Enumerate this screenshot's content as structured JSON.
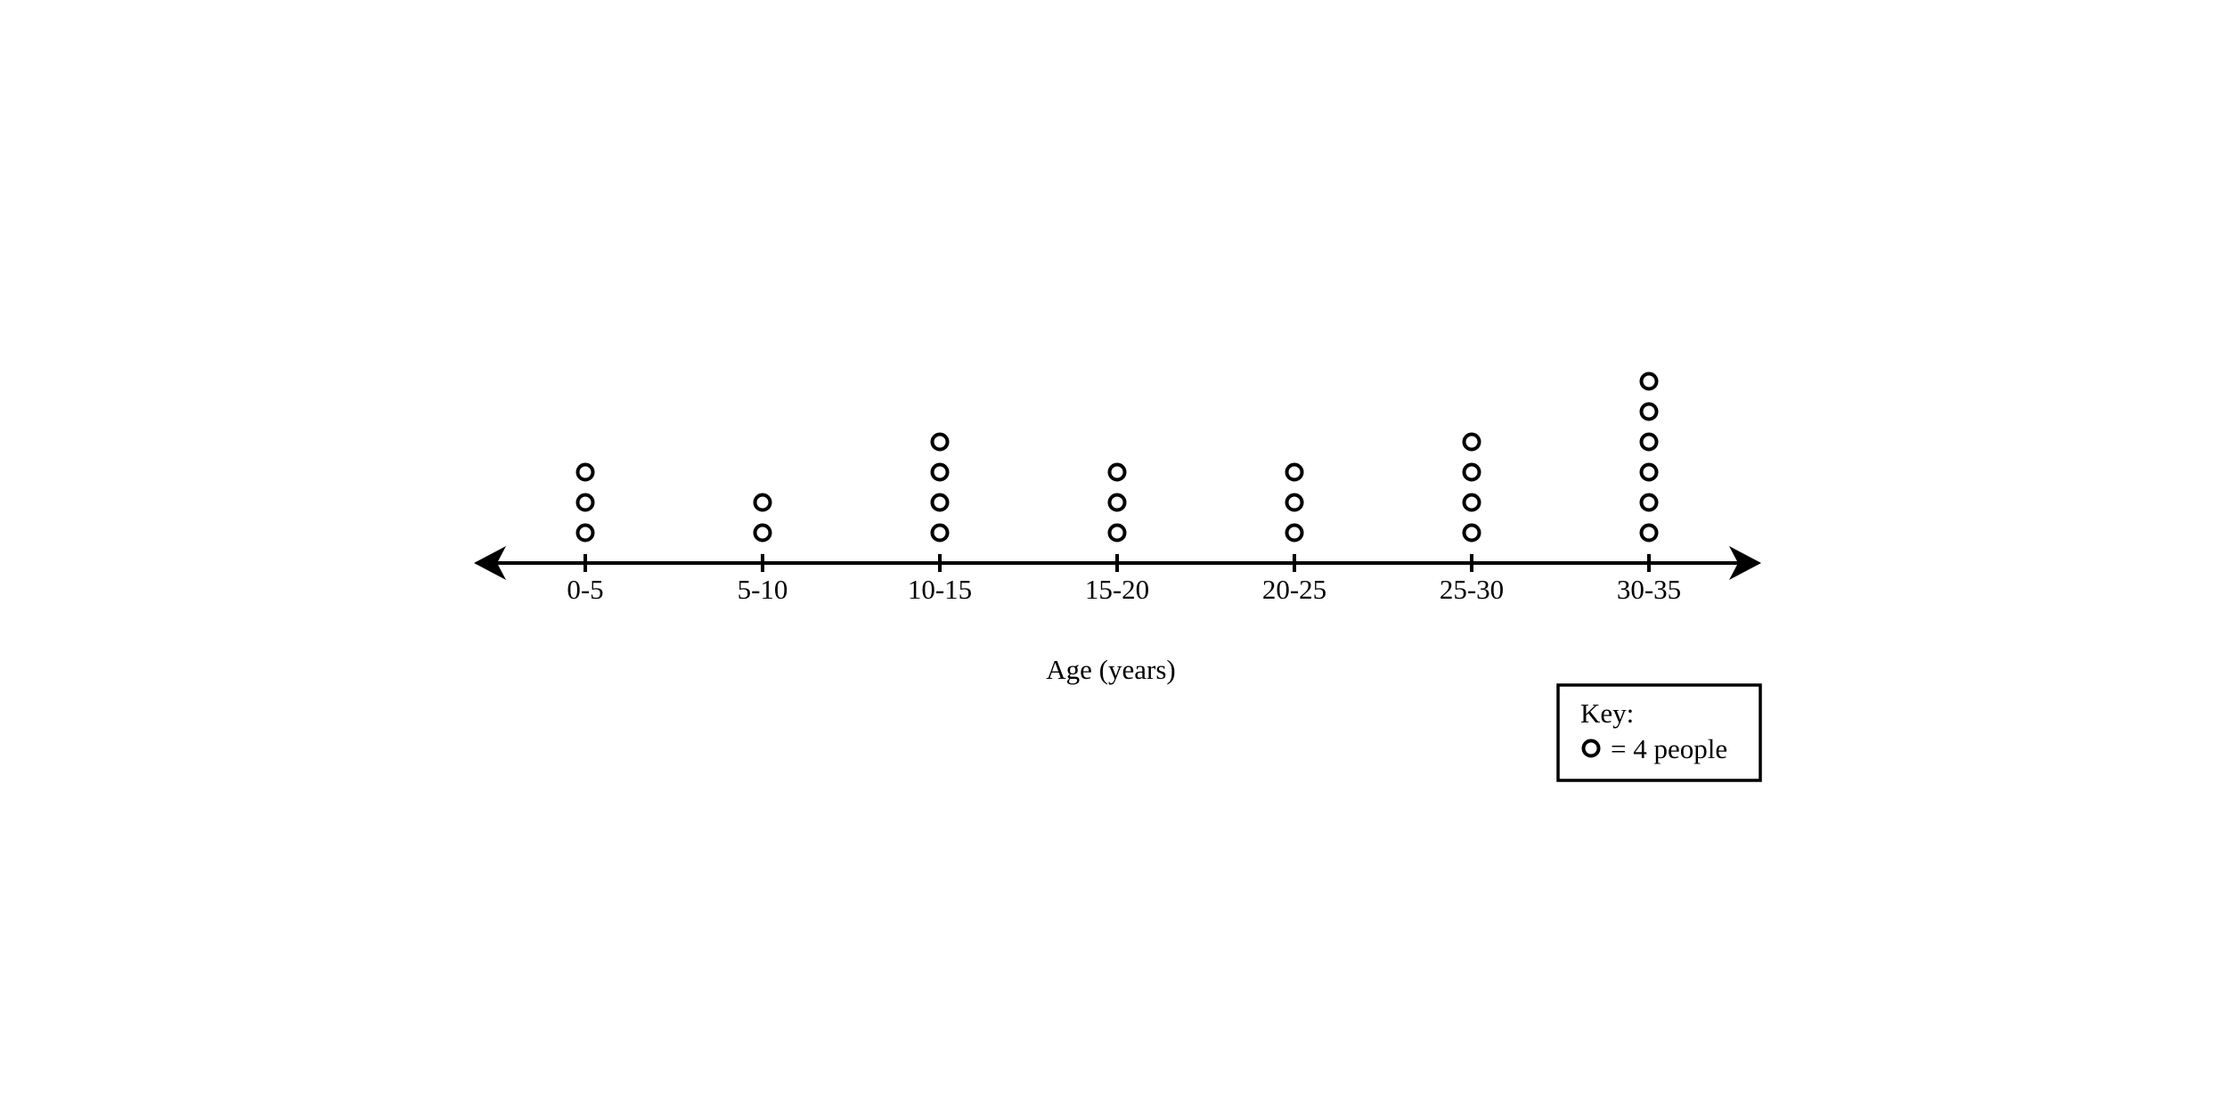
{
  "chart_data": {
    "type": "dot plot",
    "categories": [
      "0-5",
      "5-10",
      "10-15",
      "15-20",
      "20-25",
      "25-30",
      "30-35"
    ],
    "dot_counts": [
      3,
      2,
      4,
      3,
      3,
      4,
      6
    ],
    "values": [
      12,
      8,
      16,
      12,
      12,
      16,
      24
    ],
    "xlabel": "Age (years)",
    "key": {
      "title": "Key:",
      "text": "= 4 people",
      "people_per_dot": 4
    },
    "axis_arrows": "both ends",
    "grid": false
  }
}
